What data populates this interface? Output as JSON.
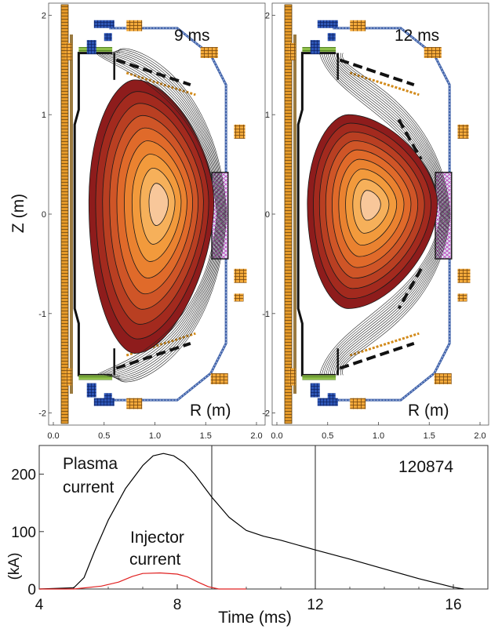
{
  "chart_data": [
    {
      "type": "heatmap",
      "panel": "left",
      "time_label": "9 ms",
      "ylabel": "Z (m)",
      "xlabel": "R (m)",
      "x_ticks": [
        "0.0",
        "0.5",
        "1.0",
        "1.5",
        "2.0"
      ],
      "y_ticks": [
        "2",
        "1",
        "0",
        "-1",
        "-2"
      ],
      "xlim": [
        0.0,
        2.0
      ],
      "ylim": [
        -2.05,
        2.05
      ],
      "magnetic_axis": {
        "R": 1.05,
        "Z": 0.12
      },
      "plasma_boundary": {
        "R_inner": 0.35,
        "R_outer": 1.58,
        "Z_top": 1.35,
        "Z_bottom": -1.4
      },
      "flux_levels": 9
    },
    {
      "type": "heatmap",
      "panel": "right",
      "time_label": "12 ms",
      "xlabel": "R (m)",
      "x_ticks": [
        "0.0",
        "0.5",
        "1.0",
        "1.5",
        "2.0"
      ],
      "y_ticks": [
        "2",
        "1",
        "0",
        "-1",
        "-2"
      ],
      "xlim": [
        0.0,
        2.0
      ],
      "ylim": [
        -2.05,
        2.05
      ],
      "magnetic_axis": {
        "R": 0.92,
        "Z": 0.1
      },
      "plasma_boundary": {
        "R_inner": 0.3,
        "R_outer": 1.58,
        "Z_top": 1.0,
        "Z_bottom": -0.95
      },
      "flux_levels": 9
    },
    {
      "type": "line",
      "panel": "bottom",
      "xlabel": "Time (ms)",
      "ylabel": "(kA)",
      "annotation": "120874",
      "xlim": [
        4,
        17
      ],
      "ylim": [
        0,
        250
      ],
      "x_ticks": [
        "4",
        "8",
        "12",
        "16"
      ],
      "y_ticks": [
        "0",
        "100",
        "200"
      ],
      "vlines": [
        9,
        12
      ],
      "series": [
        {
          "name_line1": "Plasma",
          "name_line2": "current",
          "color": "#000000",
          "x": [
            4.0,
            5.0,
            5.3,
            5.6,
            6.0,
            6.5,
            7.0,
            7.3,
            7.6,
            7.9,
            8.2,
            8.5,
            9.0,
            9.5,
            10.0,
            10.5,
            11.0,
            12.0,
            13.0,
            14.0,
            15.0,
            16.0,
            16.3
          ],
          "y": [
            0,
            2,
            20,
            65,
            120,
            175,
            215,
            232,
            236,
            232,
            220,
            200,
            160,
            125,
            102,
            92,
            85,
            68,
            52,
            35,
            18,
            3,
            0
          ]
        },
        {
          "name_line1": "Injector",
          "name_line2": "current",
          "color": "#e02020",
          "x": [
            4.0,
            5.0,
            5.8,
            6.3,
            6.7,
            7.0,
            7.5,
            8.0,
            8.3,
            8.6,
            8.9,
            9.2,
            10.0
          ],
          "y": [
            0,
            0,
            5,
            12,
            22,
            27,
            28,
            26,
            21,
            12,
            4,
            0,
            0
          ]
        }
      ]
    }
  ]
}
